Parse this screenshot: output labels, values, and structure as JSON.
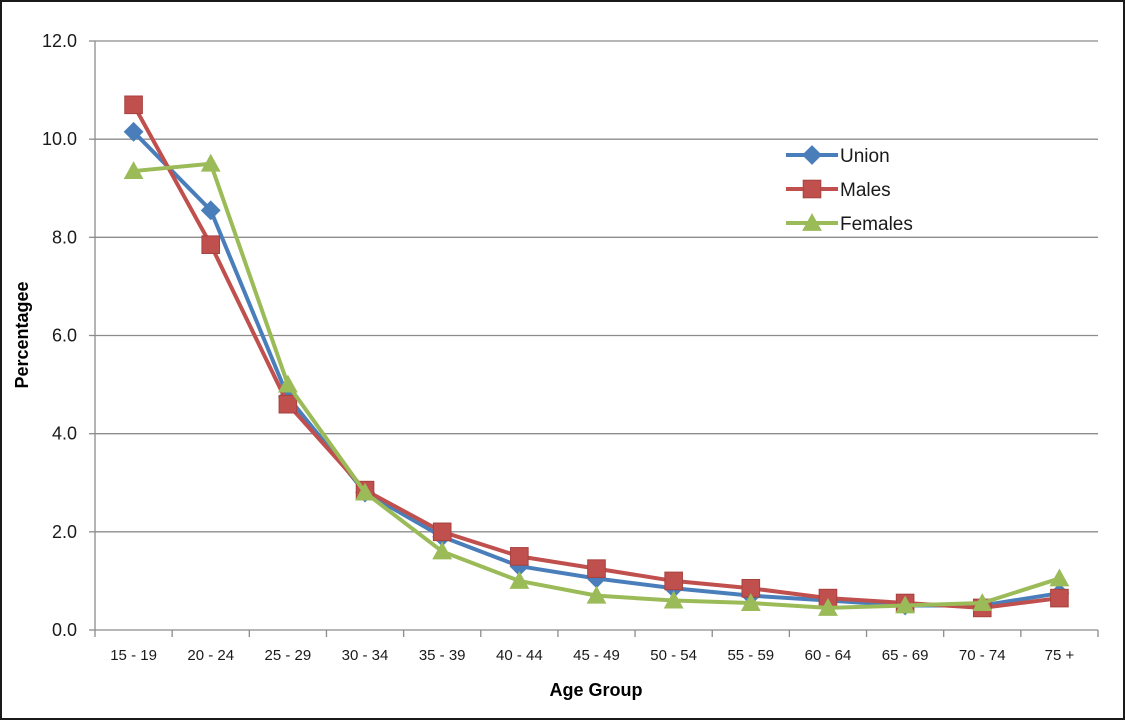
{
  "chart_data": {
    "type": "line",
    "title": "",
    "xlabel": "Age Group",
    "ylabel": "Percentagee",
    "ylim": [
      0,
      12
    ],
    "yticks": [
      "0.0",
      "2.0",
      "4.0",
      "6.0",
      "8.0",
      "10.0",
      "12.0"
    ],
    "grid": "horizontal",
    "legend_position": "top-right",
    "categories": [
      "15 - 19",
      "20 - 24",
      "25 - 29",
      "30 - 34",
      "35 - 39",
      "40 - 44",
      "45 - 49",
      "50 - 54",
      "55 - 59",
      "60 - 64",
      "65 - 69",
      "70 - 74",
      "75 +"
    ],
    "series": [
      {
        "name": "Union",
        "color": "#4a7ebb",
        "marker": "diamond",
        "values": [
          10.15,
          8.55,
          4.75,
          2.8,
          1.9,
          1.3,
          1.05,
          0.85,
          0.7,
          0.6,
          0.5,
          0.5,
          0.75
        ]
      },
      {
        "name": "Males",
        "color": "#c0504d",
        "marker": "square",
        "values": [
          10.7,
          7.85,
          4.6,
          2.85,
          2.0,
          1.5,
          1.25,
          1.0,
          0.85,
          0.65,
          0.55,
          0.45,
          0.65
        ]
      },
      {
        "name": "Females",
        "color": "#9bbb59",
        "marker": "triangle",
        "values": [
          9.35,
          9.5,
          5.0,
          2.8,
          1.6,
          1.0,
          0.7,
          0.6,
          0.55,
          0.45,
          0.5,
          0.55,
          1.05
        ]
      }
    ]
  }
}
